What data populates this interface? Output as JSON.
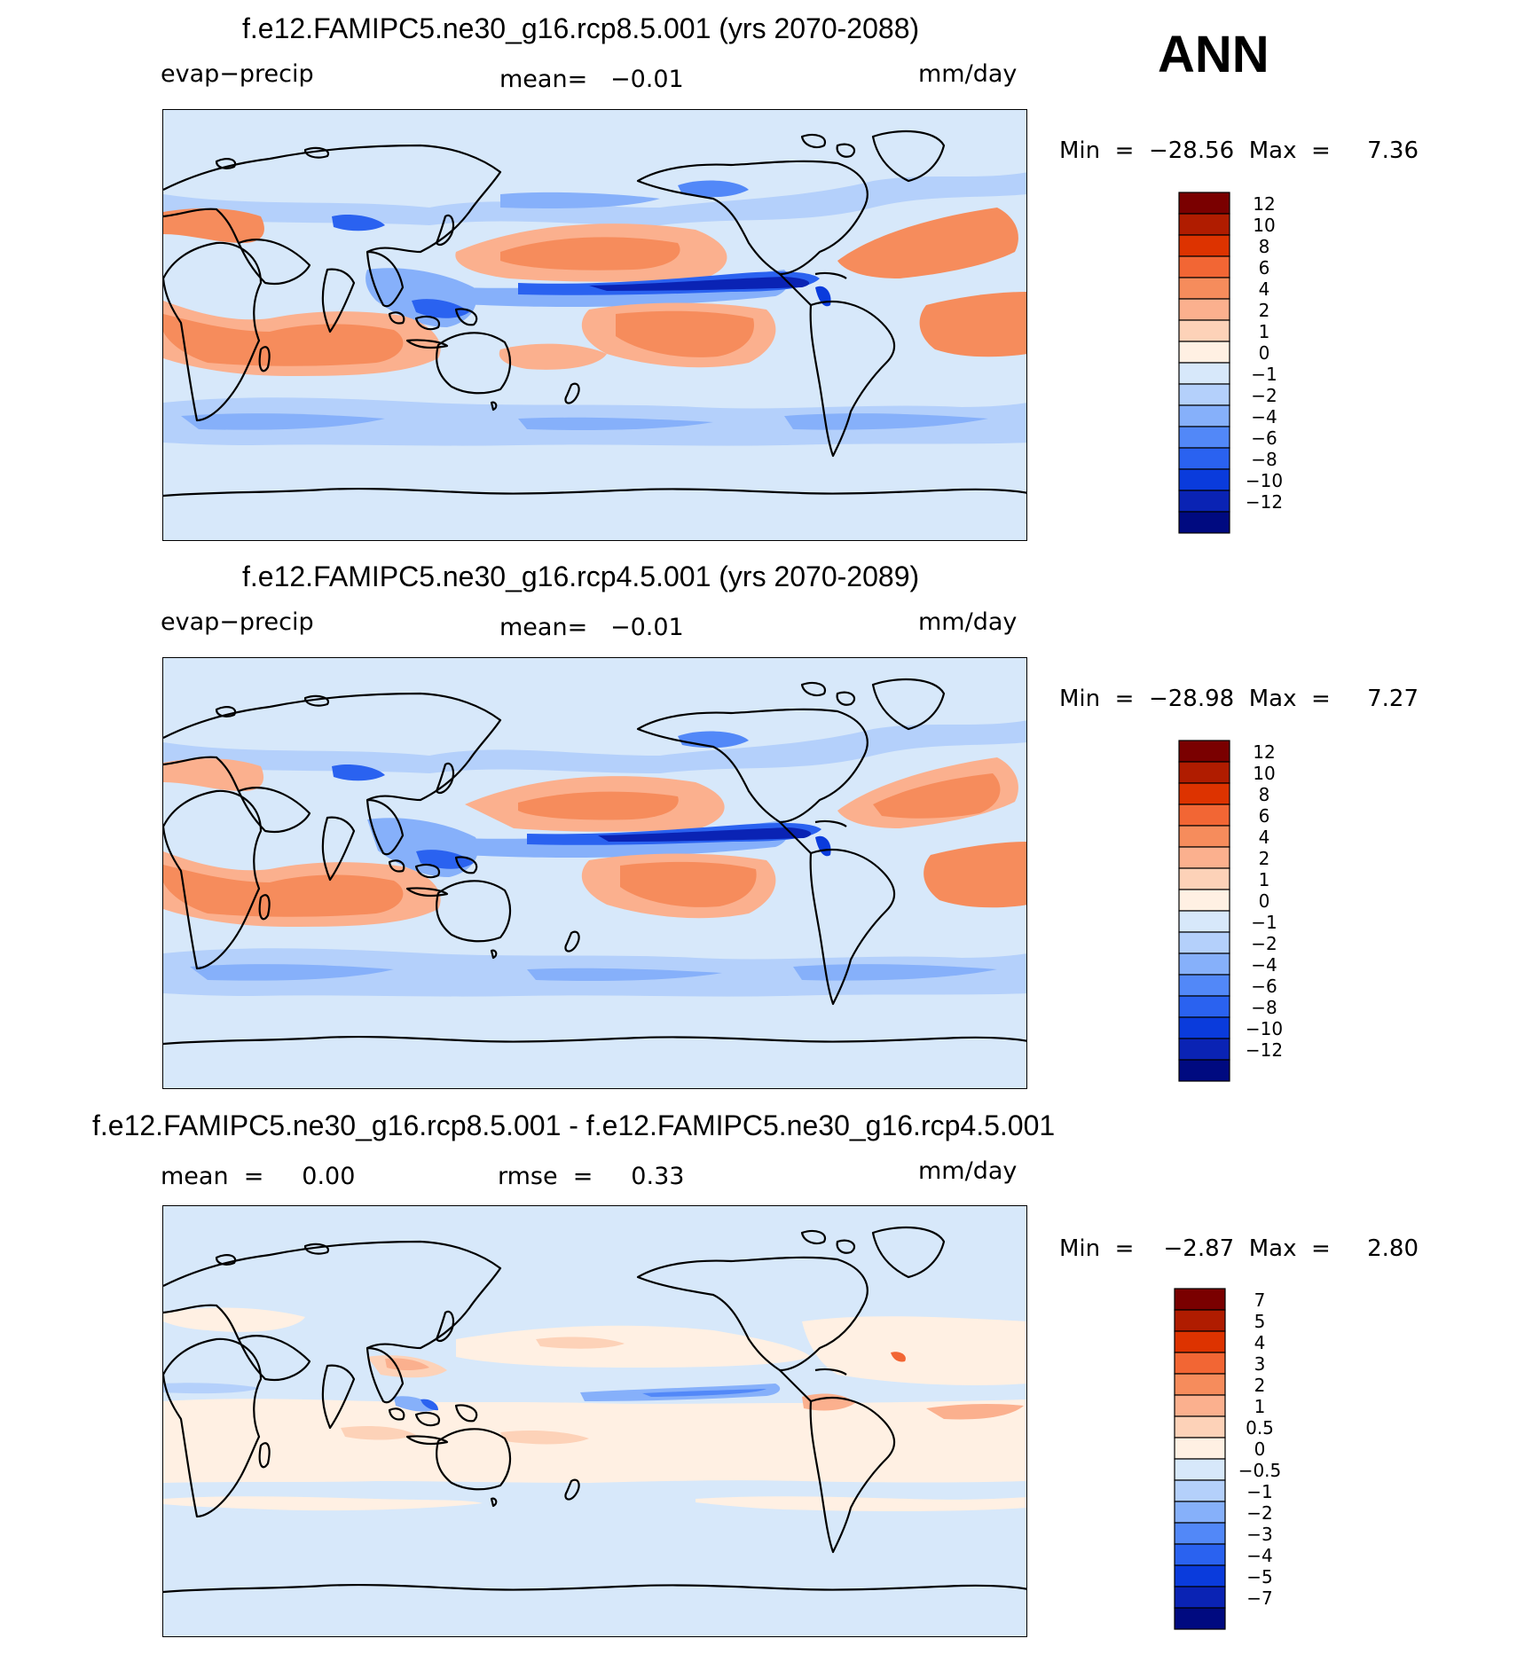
{
  "season": "ANN",
  "panels": [
    {
      "title": "f.e12.FAMIPC5.ne30_g16.rcp8.5.001 (yrs 2070-2088)",
      "left_label": "evap−precip",
      "center_label": "mean=   −0.01",
      "units": "mm/day",
      "minmax": "Min  =  −28.56  Max  =     7.36",
      "colorbar": {
        "labels": [
          "12",
          "10",
          "8",
          "6",
          "4",
          "2",
          "1",
          "0",
          "−1",
          "−2",
          "−4",
          "−6",
          "−8",
          "−10",
          "−12"
        ],
        "colors": [
          "#7a0000",
          "#b01c00",
          "#dd3300",
          "#f26634",
          "#f68c5c",
          "#fbb08e",
          "#fdd2b8",
          "#fff0e3",
          "#d7e8fa",
          "#b4d0fb",
          "#86b0fa",
          "#5288f8",
          "#2a62f0",
          "#0a3bdc",
          "#0a23b4",
          "#000a80"
        ]
      }
    },
    {
      "title": "f.e12.FAMIPC5.ne30_g16.rcp4.5.001 (yrs 2070-2089)",
      "left_label": "evap−precip",
      "center_label": "mean=   −0.01",
      "units": "mm/day",
      "minmax": "Min  =  −28.98  Max  =     7.27",
      "colorbar": {
        "labels": [
          "12",
          "10",
          "8",
          "6",
          "4",
          "2",
          "1",
          "0",
          "−1",
          "−2",
          "−4",
          "−6",
          "−8",
          "−10",
          "−12"
        ],
        "colors": [
          "#7a0000",
          "#b01c00",
          "#dd3300",
          "#f26634",
          "#f68c5c",
          "#fbb08e",
          "#fdd2b8",
          "#fff0e3",
          "#d7e8fa",
          "#b4d0fb",
          "#86b0fa",
          "#5288f8",
          "#2a62f0",
          "#0a3bdc",
          "#0a23b4",
          "#000a80"
        ]
      }
    },
    {
      "title": "f.e12.FAMIPC5.ne30_g16.rcp8.5.001 - f.e12.FAMIPC5.ne30_g16.rcp4.5.001",
      "left_label": "mean  =     0.00",
      "center_label": "rmse  =     0.33",
      "units": "mm/day",
      "minmax": "Min  =    −2.87  Max  =     2.80",
      "colorbar": {
        "labels": [
          "7",
          "5",
          "4",
          "3",
          "2",
          "1",
          "0.5",
          "0",
          "−0.5",
          "−1",
          "−2",
          "−3",
          "−4",
          "−5",
          "−7"
        ],
        "colors": [
          "#7a0000",
          "#b01c00",
          "#dd3300",
          "#f26634",
          "#f68c5c",
          "#fbb08e",
          "#fdd2b8",
          "#fff0e3",
          "#d7e8fa",
          "#b4d0fb",
          "#86b0fa",
          "#5288f8",
          "#2a62f0",
          "#0a3bdc",
          "#0a23b4",
          "#000a80"
        ]
      }
    }
  ],
  "chart_data": [
    {
      "type": "heatmap",
      "title": "f.e12.FAMIPC5.ne30_g16.rcp8.5.001 (yrs 2070-2088)",
      "variable": "evap−precip",
      "units": "mm/day",
      "mean": -0.01,
      "min": -28.56,
      "max": 7.36,
      "contour_levels": [
        -12,
        -10,
        -8,
        -6,
        -4,
        -2,
        -1,
        0,
        1,
        2,
        4,
        6,
        8,
        10,
        12
      ]
    },
    {
      "type": "heatmap",
      "title": "f.e12.FAMIPC5.ne30_g16.rcp4.5.001 (yrs 2070-2089)",
      "variable": "evap−precip",
      "units": "mm/day",
      "mean": -0.01,
      "min": -28.98,
      "max": 7.27,
      "contour_levels": [
        -12,
        -10,
        -8,
        -6,
        -4,
        -2,
        -1,
        0,
        1,
        2,
        4,
        6,
        8,
        10,
        12
      ]
    },
    {
      "type": "heatmap",
      "title": "f.e12.FAMIPC5.ne30_g16.rcp8.5.001 - f.e12.FAMIPC5.ne30_g16.rcp4.5.001",
      "units": "mm/day",
      "mean": 0.0,
      "rmse": 0.33,
      "min": -2.87,
      "max": 2.8,
      "contour_levels": [
        -7,
        -5,
        -4,
        -3,
        -2,
        -1,
        -0.5,
        0,
        0.5,
        1,
        2,
        3,
        4,
        5,
        7
      ]
    }
  ]
}
